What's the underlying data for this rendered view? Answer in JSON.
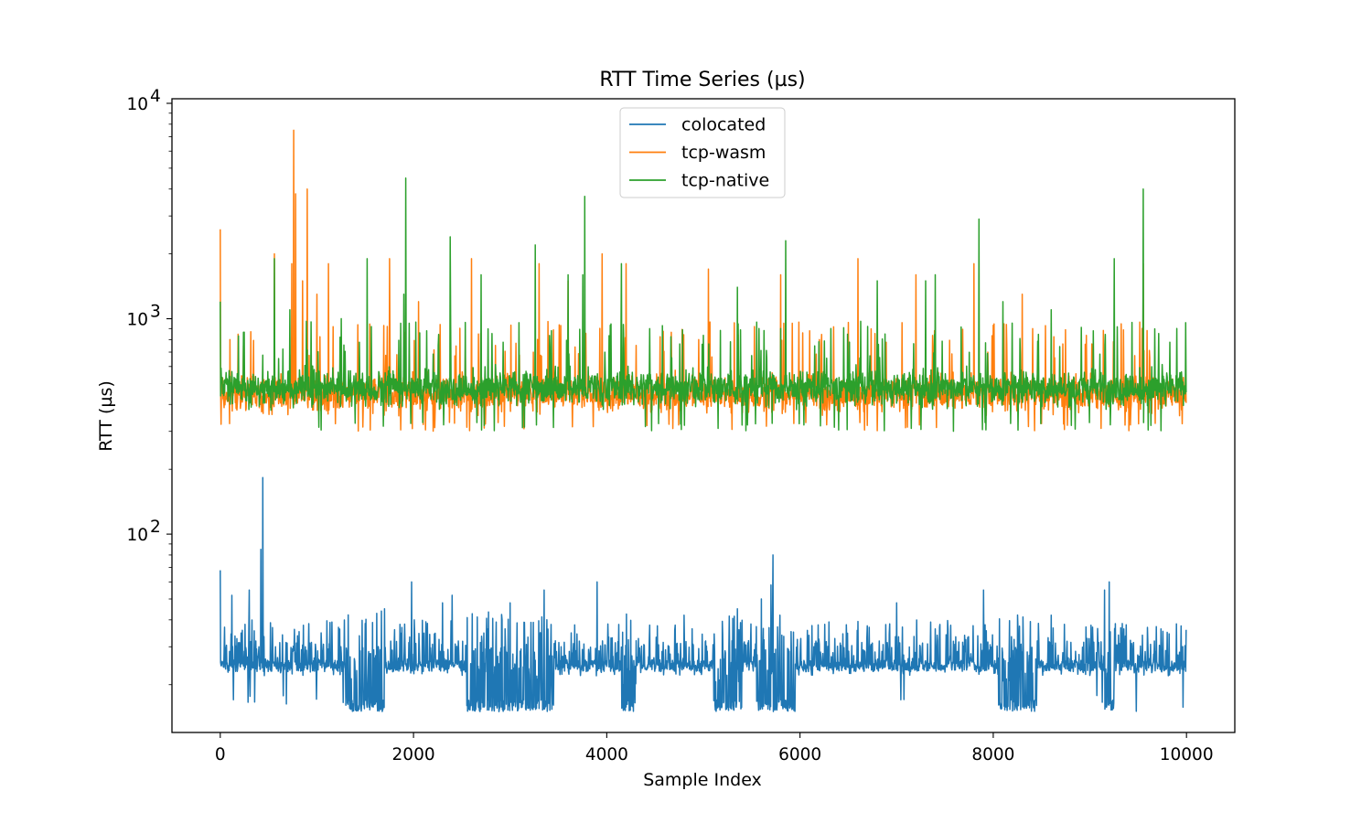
{
  "chart_data": {
    "type": "line",
    "title": "RTT Time Series (µs)",
    "xlabel": "Sample Index",
    "ylabel": "RTT (µs)",
    "xlim": [
      -500,
      10500
    ],
    "ylim": [
      12,
      10500
    ],
    "yscale": "log",
    "grid": false,
    "legend_position": "top-center",
    "x_ticks": [
      0,
      2000,
      4000,
      6000,
      8000,
      10000
    ],
    "x_tick_labels": [
      "0",
      "2000",
      "4000",
      "6000",
      "8000",
      "10000"
    ],
    "y_major_ticks": [
      100,
      1000,
      10000
    ],
    "y_tick_labels": [
      {
        "base": "10",
        "exp": "2"
      },
      {
        "base": "10",
        "exp": "3"
      },
      {
        "base": "10",
        "exp": "4"
      }
    ],
    "n_samples": 10000,
    "series": [
      {
        "name": "colocated",
        "color": "#1f77b4",
        "baseline": 24,
        "noise_range": [
          22,
          32
        ],
        "low_segments": [
          [
            1300,
            1700
          ],
          [
            2550,
            3450
          ],
          [
            4150,
            4300
          ],
          [
            5100,
            5400
          ],
          [
            5550,
            5950
          ],
          [
            8050,
            8450
          ],
          [
            9150,
            9250
          ]
        ],
        "low_value": 15,
        "spikes": [
          [
            0,
            68
          ],
          [
            120,
            52
          ],
          [
            300,
            55
          ],
          [
            420,
            85
          ],
          [
            440,
            183
          ],
          [
            1700,
            45
          ],
          [
            1980,
            60
          ],
          [
            2300,
            48
          ],
          [
            2400,
            52
          ],
          [
            3000,
            48
          ],
          [
            3350,
            55
          ],
          [
            3900,
            60
          ],
          [
            4800,
            42
          ],
          [
            5350,
            45
          ],
          [
            5600,
            50
          ],
          [
            5700,
            58
          ],
          [
            5720,
            80
          ],
          [
            7000,
            48
          ],
          [
            7900,
            55
          ],
          [
            8600,
            42
          ],
          [
            9150,
            55
          ],
          [
            9200,
            60
          ],
          [
            9800,
            35
          ]
        ]
      },
      {
        "name": "tcp-wasm",
        "color": "#ff7f0e",
        "baseline": 450,
        "noise_range": [
          330,
          650
        ],
        "spikes": [
          [
            0,
            2600
          ],
          [
            100,
            800
          ],
          [
            560,
            2000
          ],
          [
            740,
            1800
          ],
          [
            760,
            7500
          ],
          [
            780,
            3800
          ],
          [
            850,
            1500
          ],
          [
            900,
            4000
          ],
          [
            1000,
            1300
          ],
          [
            1120,
            1800
          ],
          [
            1750,
            1900
          ],
          [
            2050,
            1200
          ],
          [
            2600,
            1900
          ],
          [
            3300,
            1800
          ],
          [
            3600,
            1500
          ],
          [
            3950,
            2000
          ],
          [
            4200,
            1800
          ],
          [
            4950,
            800
          ],
          [
            5050,
            1700
          ],
          [
            5550,
            900
          ],
          [
            5800,
            1600
          ],
          [
            6200,
            800
          ],
          [
            6600,
            1900
          ],
          [
            7200,
            1600
          ],
          [
            7800,
            1800
          ],
          [
            8300,
            1300
          ],
          [
            9550,
            1800
          ]
        ]
      },
      {
        "name": "tcp-native",
        "color": "#2ca02c",
        "baseline": 480,
        "noise_range": [
          330,
          650
        ],
        "spikes": [
          [
            0,
            1200
          ],
          [
            560,
            1900
          ],
          [
            720,
            1100
          ],
          [
            1250,
            1000
          ],
          [
            1520,
            1900
          ],
          [
            1900,
            1300
          ],
          [
            1920,
            4500
          ],
          [
            2380,
            2400
          ],
          [
            2700,
            1600
          ],
          [
            3260,
            2200
          ],
          [
            3600,
            1600
          ],
          [
            3750,
            1600
          ],
          [
            3770,
            3700
          ],
          [
            4150,
            1800
          ],
          [
            5350,
            1400
          ],
          [
            5800,
            900
          ],
          [
            5850,
            2300
          ],
          [
            6320,
            900
          ],
          [
            6800,
            1500
          ],
          [
            7300,
            1500
          ],
          [
            7400,
            1600
          ],
          [
            7850,
            2900
          ],
          [
            8100,
            1200
          ],
          [
            8600,
            1100
          ],
          [
            9250,
            1900
          ],
          [
            9550,
            4000
          ],
          [
            9900,
            900
          ]
        ]
      }
    ]
  }
}
